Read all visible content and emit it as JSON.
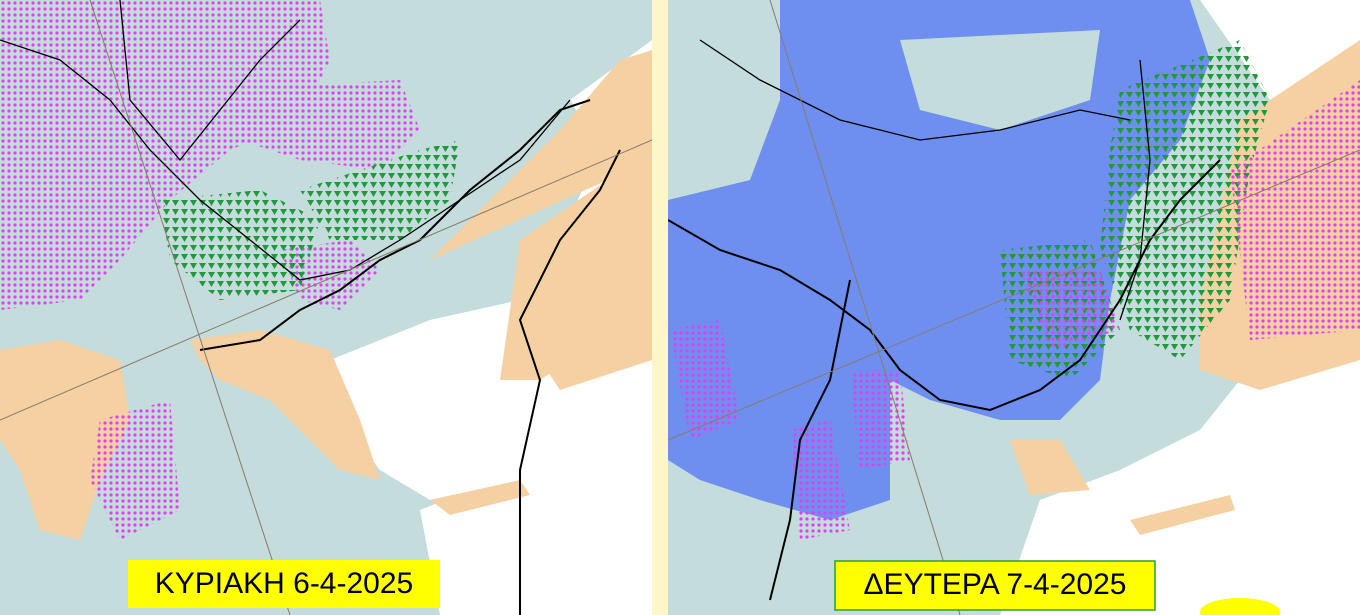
{
  "panels": [
    {
      "label": "ΚΥΡΙΑΚΗ 6-4-2025"
    },
    {
      "label": "ΔΕΥΤΕΡΑ 7-4-2025"
    }
  ]
}
